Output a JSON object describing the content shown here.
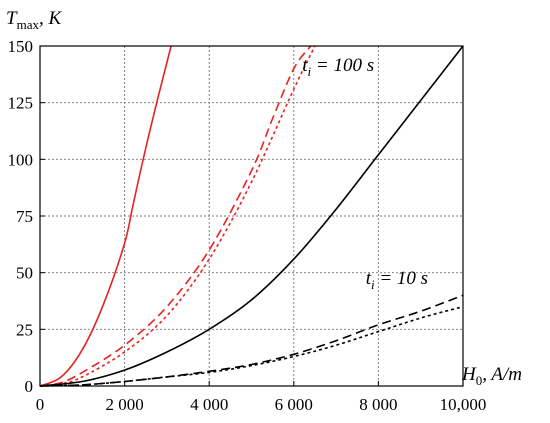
{
  "chart_data": {
    "type": "line",
    "title": "",
    "ylabel": "T_max, K",
    "xlabel": "H_0, A/m",
    "xlim": [
      0,
      10000
    ],
    "ylim": [
      0,
      150
    ],
    "grid": true,
    "xticks": [
      0,
      2000,
      4000,
      6000,
      8000,
      10000
    ],
    "xtick_labels": [
      "0",
      "2 000",
      "4 000",
      "6 000",
      "8 000",
      "10,000"
    ],
    "yticks": [
      0,
      25,
      50,
      75,
      100,
      125,
      150
    ],
    "ytick_labels": [
      "0",
      "25",
      "50",
      "75",
      "100",
      "125",
      "150"
    ],
    "annotations": [
      {
        "text": "t_i = 100 s",
        "x": 6200,
        "y": 139
      },
      {
        "text": "t_i = 10 s",
        "x": 7700,
        "y": 45
      }
    ],
    "series": [
      {
        "color": "#e8221e",
        "style": "solid",
        "x": [
          0,
          500,
          1000,
          1500,
          2000,
          2200,
          2500,
          2800,
          3100
        ],
        "y": [
          0,
          4,
          16,
          36,
          63,
          80,
          105,
          128,
          150
        ]
      },
      {
        "color": "#e8221e",
        "style": "dashed",
        "x": [
          0,
          500,
          1000,
          2000,
          3000,
          4000,
          5000,
          5500,
          6000,
          6400
        ],
        "y": [
          0,
          1.5,
          6,
          18,
          35,
          60,
          95,
          118,
          140,
          150
        ]
      },
      {
        "color": "#e8221e",
        "style": "dotted",
        "x": [
          0,
          500,
          1000,
          2000,
          3000,
          4000,
          5000,
          6000,
          6500
        ],
        "y": [
          0,
          1,
          4,
          15,
          31,
          56,
          90,
          131,
          150
        ]
      },
      {
        "color": "#000000",
        "style": "solid",
        "x": [
          0,
          1000,
          2000,
          3000,
          4000,
          5000,
          6000,
          7000,
          8000,
          9000,
          10000
        ],
        "y": [
          0,
          2,
          7,
          15,
          25,
          38,
          56,
          78,
          102,
          126,
          150
        ]
      },
      {
        "color": "#000000",
        "style": "dashed",
        "x": [
          0,
          1000,
          2000,
          3000,
          4000,
          5000,
          6000,
          7000,
          8000,
          9000,
          10000
        ],
        "y": [
          0,
          0.5,
          2,
          4,
          6.5,
          9.5,
          14,
          20,
          27,
          33,
          40
        ]
      },
      {
        "color": "#000000",
        "style": "dotted",
        "x": [
          0,
          1000,
          2000,
          3000,
          4000,
          5000,
          6000,
          7000,
          8000,
          9000,
          10000
        ],
        "y": [
          0,
          0.5,
          2,
          4,
          6,
          9,
          13,
          18,
          24,
          30,
          35
        ]
      }
    ]
  }
}
